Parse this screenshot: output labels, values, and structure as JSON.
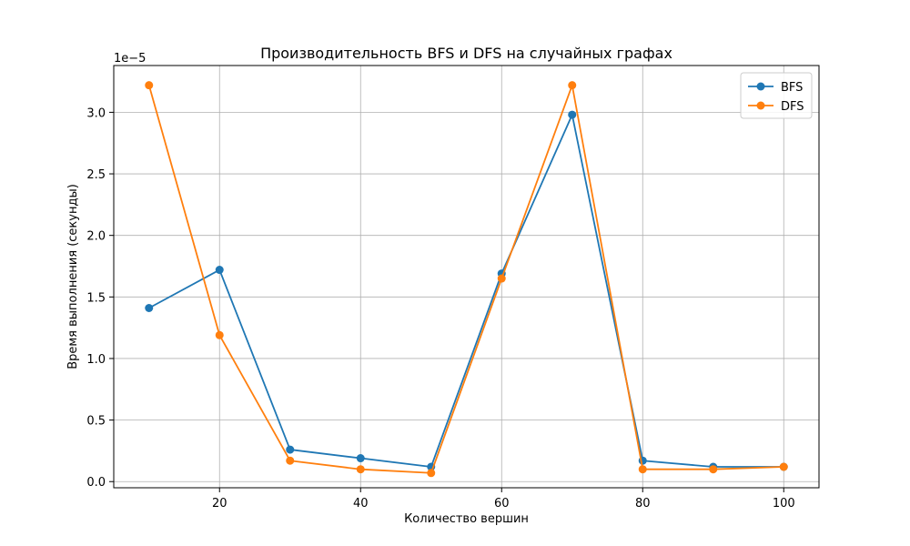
{
  "chart_data": {
    "type": "line",
    "title": "Производительность BFS и DFS на случайных графах",
    "xlabel": "Количество вершин",
    "ylabel": "Время выполнения (секунды)",
    "y_scale_label": "1e−5",
    "y_multiplier": 1e-05,
    "x": [
      10,
      20,
      30,
      40,
      50,
      60,
      70,
      80,
      90,
      100
    ],
    "xlim": [
      5,
      105
    ],
    "ylim": [
      -0.05,
      3.38
    ],
    "x_ticks": [
      20,
      40,
      60,
      80,
      100
    ],
    "y_ticks": [
      0.0,
      0.5,
      1.0,
      1.5,
      2.0,
      2.5,
      3.0
    ],
    "grid": true,
    "legend_position": "top-right",
    "series": [
      {
        "name": "BFS",
        "color": "#1f77b4",
        "values": [
          1.41,
          1.72,
          0.26,
          0.19,
          0.12,
          1.69,
          2.98,
          0.17,
          0.12,
          0.12
        ]
      },
      {
        "name": "DFS",
        "color": "#ff7f0e",
        "values": [
          3.22,
          1.19,
          0.17,
          0.1,
          0.07,
          1.65,
          3.22,
          0.1,
          0.1,
          0.12
        ]
      }
    ]
  }
}
